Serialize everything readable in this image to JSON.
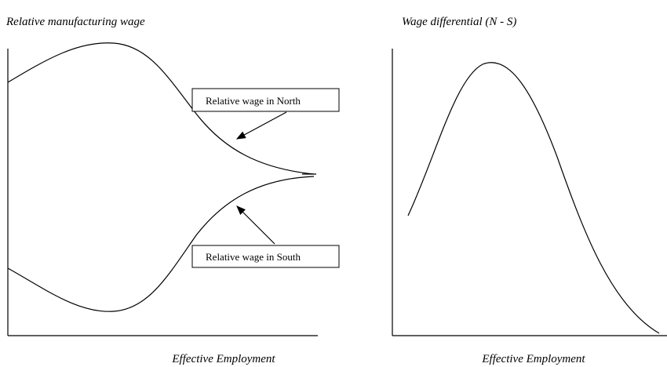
{
  "panels": [
    {
      "ylabel": "Relative manufacturing wage",
      "xlabel": "Effective Employment",
      "callouts": [
        "Relative wage in North",
        "Relative wage in South"
      ]
    },
    {
      "ylabel": "Wage differential (N - S)",
      "xlabel": "Effective Employment"
    }
  ]
}
